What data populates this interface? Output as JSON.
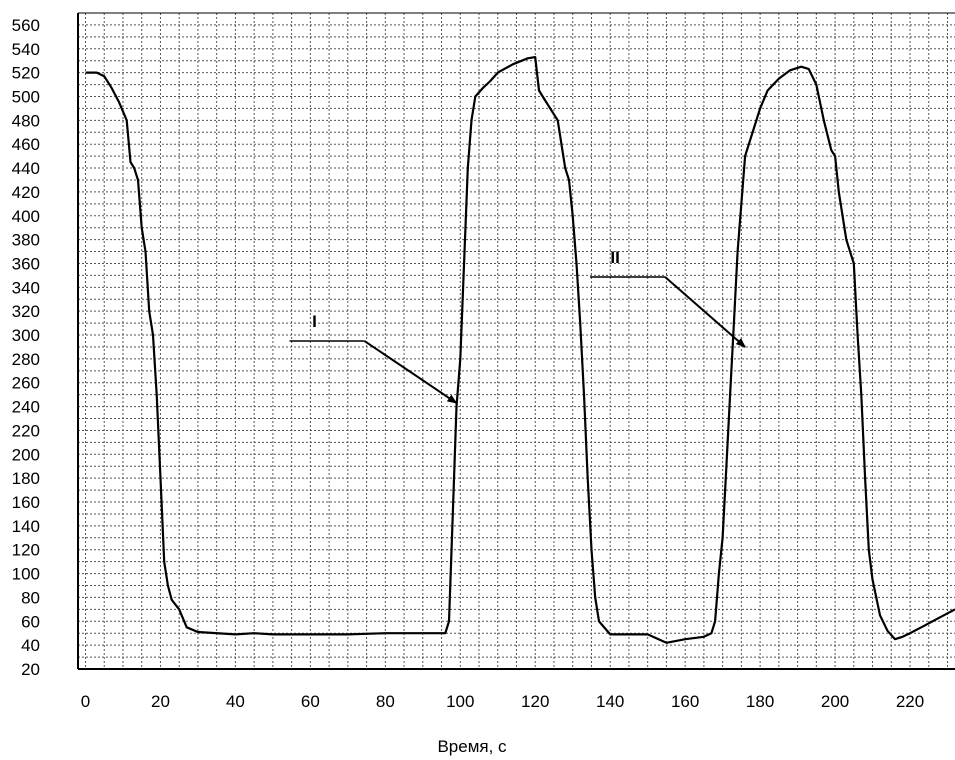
{
  "chart_data": {
    "type": "line",
    "title": "",
    "xlabel": "Время, с",
    "ylabel": "",
    "xlim": [
      -2,
      232
    ],
    "ylim": [
      20,
      570
    ],
    "grid": true,
    "x_ticks": [
      0,
      20,
      40,
      60,
      80,
      100,
      120,
      140,
      160,
      180,
      200,
      220
    ],
    "y_ticks": [
      20,
      40,
      60,
      80,
      100,
      120,
      140,
      160,
      180,
      200,
      220,
      240,
      260,
      280,
      300,
      320,
      340,
      360,
      380,
      400,
      420,
      440,
      460,
      480,
      500,
      520,
      540,
      560
    ],
    "annotations": [
      {
        "text": "I",
        "point": [
          99,
          243
        ]
      },
      {
        "text": "II",
        "point": [
          176,
          290
        ]
      }
    ],
    "series": [
      {
        "x": [
          0,
          3,
          5,
          7,
          9,
          11,
          12,
          13,
          14,
          15,
          16,
          17,
          18,
          19,
          20,
          21,
          22,
          23,
          25,
          27,
          30,
          40,
          45,
          50,
          60,
          70,
          80,
          90,
          96,
          97,
          98,
          99,
          100,
          102,
          103,
          104,
          106,
          108,
          110,
          114,
          118,
          120,
          121,
          122,
          124,
          126,
          128,
          129,
          130,
          131,
          132,
          133,
          134,
          135,
          136,
          137,
          140,
          150,
          155,
          160,
          165,
          167,
          168,
          169,
          170,
          171,
          172,
          173,
          174,
          176,
          178,
          180,
          182,
          185,
          188,
          191,
          193,
          195,
          197,
          199,
          200,
          201,
          203,
          205,
          206,
          207,
          208,
          209,
          210,
          212,
          214,
          216,
          218,
          220,
          223,
          226,
          229,
          232
        ],
        "y": [
          520,
          520,
          517,
          507,
          495,
          480,
          445,
          440,
          430,
          390,
          370,
          320,
          300,
          250,
          180,
          110,
          90,
          78,
          70,
          55,
          51,
          49,
          50,
          49,
          49,
          49,
          50,
          50,
          50,
          60,
          150,
          240,
          280,
          440,
          480,
          500,
          507,
          513,
          520,
          527,
          532,
          533,
          505,
          500,
          490,
          480,
          440,
          430,
          400,
          360,
          310,
          250,
          180,
          120,
          80,
          60,
          49,
          49,
          42,
          45,
          47,
          50,
          60,
          100,
          130,
          190,
          250,
          310,
          370,
          450,
          470,
          490,
          505,
          515,
          522,
          525,
          523,
          510,
          480,
          455,
          450,
          420,
          380,
          360,
          300,
          250,
          180,
          120,
          95,
          65,
          52,
          45,
          47,
          50,
          55,
          60,
          65,
          70
        ]
      }
    ]
  }
}
